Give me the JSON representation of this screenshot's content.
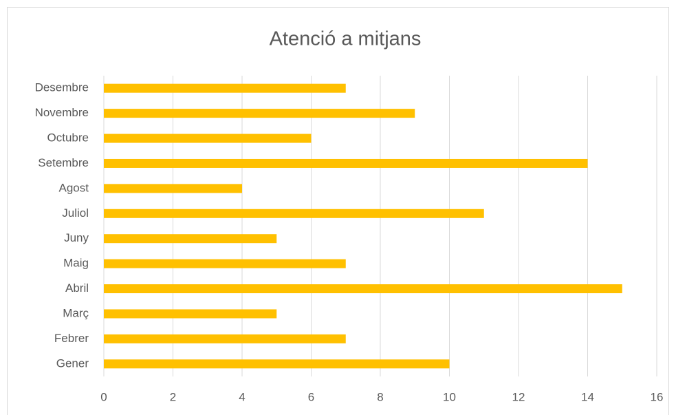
{
  "chart_data": {
    "type": "bar",
    "orientation": "horizontal",
    "title": "Atenció a mitjans",
    "categories": [
      "Gener",
      "Febrer",
      "Març",
      "Abril",
      "Maig",
      "Juny",
      "Juliol",
      "Agost",
      "Setembre",
      "Octubre",
      "Novembre",
      "Desembre"
    ],
    "values": [
      10,
      7,
      5,
      15,
      7,
      5,
      11,
      4,
      14,
      6,
      9,
      7
    ],
    "color": "#ffc000",
    "xlim": [
      0,
      16
    ],
    "xticks": [
      0,
      2,
      4,
      6,
      8,
      10,
      12,
      14,
      16
    ],
    "grid": true
  }
}
